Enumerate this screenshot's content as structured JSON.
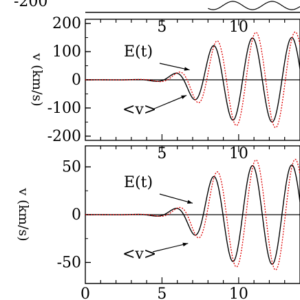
{
  "chart_data": [
    {
      "type": "line",
      "panel": "top",
      "ylabel": "v (km/s)",
      "yticks": [
        -200,
        -100,
        0,
        100,
        200
      ],
      "ytick_labels": [
        "-200",
        "-100",
        "0",
        "100",
        "200"
      ],
      "ylim": [
        -215,
        215
      ],
      "xlim": [
        0,
        14
      ],
      "xticks_top": [
        5,
        10
      ],
      "xtick_labels_top": [
        "5",
        "10"
      ],
      "annotations": [
        {
          "text": "E(t)",
          "target_x": 6.8,
          "target_y": 35
        },
        {
          "text": "<v>",
          "target_x": 6.6,
          "target_y": -55
        }
      ],
      "series": [
        {
          "key": "E",
          "style": "solid",
          "color": "#000000",
          "x_start": 0,
          "x_end": 14,
          "amplitude": 150,
          "omega": 2.45,
          "phase": 0.0,
          "growth_center": 7.2,
          "growth_width": 0.8
        },
        {
          "key": "v",
          "style": "dotted",
          "color": "#e00000",
          "x_start": 0,
          "x_end": 14,
          "amplitude": 170,
          "omega": 2.45,
          "phase": -0.55,
          "growth_center": 7.4,
          "growth_width": 0.8
        }
      ]
    },
    {
      "type": "line",
      "panel": "bottom",
      "ylabel": "v (km/s)",
      "yticks": [
        -50,
        0,
        50
      ],
      "ytick_labels": [
        "-50",
        "0",
        "50"
      ],
      "ylim": [
        -72,
        72
      ],
      "xlim": [
        0,
        14
      ],
      "xticks": [
        0,
        5,
        10
      ],
      "xtick_labels": [
        "0",
        "5",
        "10"
      ],
      "xticks_top": [
        5,
        10
      ],
      "xtick_labels_top": [
        "5",
        "10"
      ],
      "annotations": [
        {
          "text": "E(t)",
          "target_x": 7.0,
          "target_y": 12
        },
        {
          "text": "<v>",
          "target_x": 6.7,
          "target_y": -30
        }
      ],
      "series": [
        {
          "key": "E",
          "style": "solid",
          "color": "#000000",
          "x_start": 0,
          "x_end": 14,
          "amplitude": 52,
          "omega": 2.45,
          "phase": 0.0,
          "growth_center": 7.4,
          "growth_width": 0.8
        },
        {
          "key": "v",
          "style": "dotted",
          "color": "#e00000",
          "x_start": 0,
          "x_end": 14,
          "amplitude": 58,
          "omega": 2.45,
          "phase": -0.55,
          "growth_center": 7.6,
          "growth_width": 0.8
        }
      ]
    }
  ],
  "top_partial_axis": {
    "tick_label": "-200"
  }
}
